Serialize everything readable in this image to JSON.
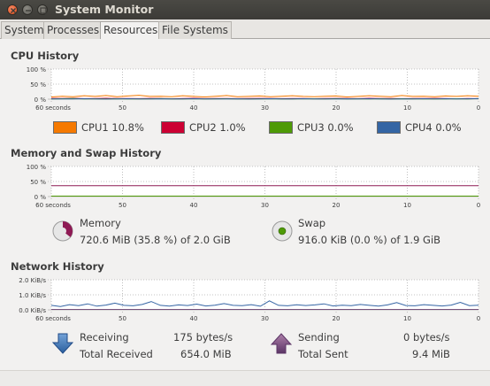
{
  "window": {
    "title": "System Monitor"
  },
  "tabs": [
    {
      "label": "System"
    },
    {
      "label": "Processes"
    },
    {
      "label": "Resources"
    },
    {
      "label": "File Systems"
    }
  ],
  "cpu": {
    "title": "CPU History",
    "y_ticks": [
      "100 %",
      "50 %",
      "0 %"
    ],
    "x_ticks": [
      "60 seconds",
      "50",
      "40",
      "30",
      "20",
      "10",
      "0"
    ],
    "legend": [
      {
        "label": "CPU1  10.8%",
        "color": "#f57900"
      },
      {
        "label": "CPU2  1.0%",
        "color": "#cc0033"
      },
      {
        "label": "CPU3  0.0%",
        "color": "#4e9a06"
      },
      {
        "label": "CPU4  0.0%",
        "color": "#3465a4"
      }
    ]
  },
  "memory": {
    "title": "Memory and Swap History",
    "y_ticks": [
      "100 %",
      "50 %",
      "0 %"
    ],
    "x_ticks": [
      "60 seconds",
      "50",
      "40",
      "30",
      "20",
      "10",
      "0"
    ],
    "memory_label": "Memory",
    "memory_value": "720.6 MiB (35.8 %) of 2.0 GiB",
    "memory_fraction": 0.358,
    "memory_color": "#8e1a54",
    "swap_label": "Swap",
    "swap_value": "916.0 KiB (0.0 %) of 1.9 GiB",
    "swap_fraction": 0.0,
    "swap_color": "#4e9a06"
  },
  "network": {
    "title": "Network History",
    "y_ticks": [
      "2.0 KiB/s",
      "1.0 KiB/s",
      "0.0 KiB/s"
    ],
    "x_ticks": [
      "60 seconds",
      "50",
      "40",
      "30",
      "20",
      "10",
      "0"
    ],
    "receiving_label": "Receiving",
    "receiving_value": "175 bytes/s",
    "total_received_label": "Total Received",
    "total_received_value": "654.0 MiB",
    "sending_label": "Sending",
    "sending_value": "0 bytes/s",
    "total_sent_label": "Total Sent",
    "total_sent_value": "9.4 MiB",
    "receive_color": "#3465a4",
    "send_color": "#75507b"
  }
}
